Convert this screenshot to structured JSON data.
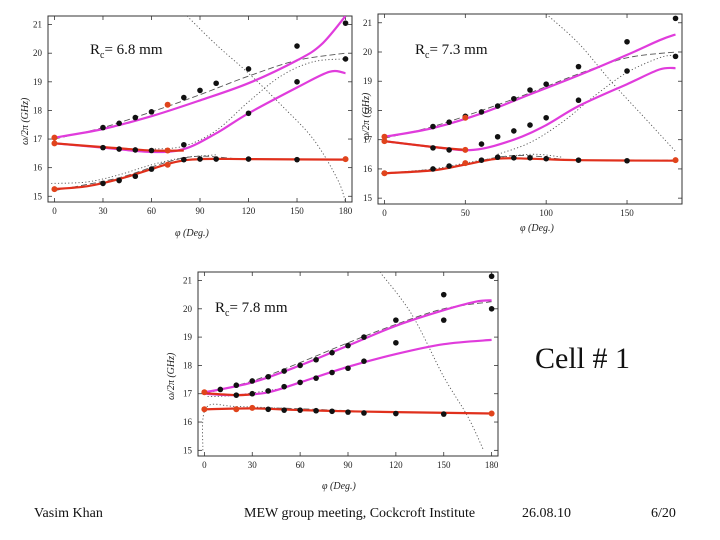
{
  "cell_label": "Cell # 1",
  "footer": {
    "author": "Vasim Khan",
    "meeting": "MEW group meeting, Cockcroft Institute",
    "date": "26.08.10",
    "page": "6/20"
  },
  "colors": {
    "magenta": "#e03cdc",
    "red": "#e0301c",
    "dashed": "#555555",
    "dotted": "#555555",
    "dot": "#111111",
    "dot_red": "#e0441c"
  },
  "chart_data": [
    {
      "id": "p1",
      "type": "scatter",
      "label_prefix": "R",
      "label_sub": "c",
      "label_value": "= 6.8 mm",
      "ylabel": "ω/2π (GHz)",
      "xlabel": "φ (Deg.)",
      "xlim": [
        -4,
        184
      ],
      "ylim": [
        14.8,
        21.3
      ],
      "xticks": [
        0,
        30,
        60,
        90,
        120,
        150,
        180
      ],
      "yticks": [
        15,
        16,
        17,
        18,
        19,
        20,
        21
      ],
      "magenta_upper": [
        [
          0,
          17.05
        ],
        [
          30,
          17.35
        ],
        [
          60,
          17.8
        ],
        [
          90,
          18.35
        ],
        [
          120,
          18.95
        ],
        [
          150,
          19.75
        ],
        [
          165,
          20.3
        ],
        [
          180,
          21.3
        ]
      ],
      "magenta_middle": [
        [
          0,
          16.85
        ],
        [
          30,
          16.7
        ],
        [
          60,
          16.55
        ],
        [
          80,
          16.65
        ],
        [
          100,
          17.2
        ],
        [
          120,
          17.9
        ],
        [
          150,
          18.8
        ],
        [
          170,
          19.35
        ],
        [
          180,
          19.3
        ]
      ],
      "red_lower": [
        [
          0,
          15.25
        ],
        [
          20,
          15.35
        ],
        [
          40,
          15.6
        ],
        [
          60,
          15.95
        ],
        [
          75,
          16.2
        ],
        [
          90,
          16.3
        ],
        [
          120,
          16.3
        ],
        [
          180,
          16.28
        ]
      ],
      "red_mid_overlay": [
        [
          0,
          16.85
        ],
        [
          30,
          16.72
        ],
        [
          60,
          16.6
        ],
        [
          80,
          16.6
        ]
      ],
      "dashed_upper": [
        [
          0,
          17.0
        ],
        [
          30,
          17.4
        ],
        [
          60,
          17.95
        ],
        [
          90,
          18.55
        ],
        [
          120,
          19.2
        ],
        [
          150,
          19.75
        ],
        [
          180,
          20.0
        ]
      ],
      "dashed_lower": [
        [
          0,
          15.2
        ],
        [
          40,
          15.65
        ],
        [
          70,
          16.2
        ],
        [
          90,
          16.4
        ],
        [
          120,
          16.3
        ],
        [
          180,
          16.3
        ]
      ],
      "dotted_upper": [
        [
          60,
          16.65
        ],
        [
          80,
          16.75
        ],
        [
          100,
          17.3
        ],
        [
          120,
          18.3
        ],
        [
          140,
          19.2
        ],
        [
          160,
          19.7
        ],
        [
          180,
          19.8
        ]
      ],
      "dotted_lower": [
        [
          -2,
          15.45
        ],
        [
          20,
          15.5
        ],
        [
          40,
          15.75
        ],
        [
          60,
          16.1
        ],
        [
          80,
          16.35
        ],
        [
          100,
          16.45
        ]
      ],
      "dotted_diag": [
        [
          82,
          21.3
        ],
        [
          100,
          20.3
        ],
        [
          120,
          19.3
        ],
        [
          140,
          18.2
        ],
        [
          160,
          17.0
        ],
        [
          175,
          15.6
        ],
        [
          180,
          14.8
        ]
      ],
      "dots_black": [
        [
          30,
          17.4
        ],
        [
          40,
          17.55
        ],
        [
          50,
          17.75
        ],
        [
          60,
          17.95
        ],
        [
          80,
          18.45
        ],
        [
          90,
          18.7
        ],
        [
          100,
          18.95
        ],
        [
          120,
          19.45
        ],
        [
          150,
          20.25
        ],
        [
          180,
          21.05
        ],
        [
          180,
          19.8
        ],
        [
          150,
          19.0
        ],
        [
          120,
          17.9
        ],
        [
          30,
          16.7
        ],
        [
          40,
          16.65
        ],
        [
          50,
          16.62
        ],
        [
          60,
          16.6
        ],
        [
          80,
          16.8
        ],
        [
          90,
          16.3
        ],
        [
          100,
          16.3
        ],
        [
          120,
          16.3
        ],
        [
          150,
          16.28
        ],
        [
          30,
          15.45
        ],
        [
          40,
          15.55
        ],
        [
          50,
          15.7
        ],
        [
          60,
          15.95
        ],
        [
          80,
          16.28
        ]
      ],
      "dots_red": [
        [
          0,
          17.05
        ],
        [
          0,
          16.85
        ],
        [
          0,
          15.25
        ],
        [
          70,
          18.2
        ],
        [
          70,
          16.6
        ],
        [
          70,
          16.1
        ],
        [
          180,
          16.3
        ]
      ]
    },
    {
      "id": "p2",
      "type": "scatter",
      "label_prefix": "R",
      "label_sub": "c",
      "label_value": "= 7.3 mm",
      "ylabel": "ω/2π (GHz)",
      "xlabel": "φ (Deg.)",
      "xlim": [
        -4,
        184
      ],
      "ylim": [
        14.8,
        21.3
      ],
      "xticks": [
        0,
        50,
        100,
        150
      ],
      "yticks": [
        15,
        16,
        17,
        18,
        19,
        20,
        21
      ],
      "magenta_upper": [
        [
          0,
          17.1
        ],
        [
          30,
          17.4
        ],
        [
          60,
          17.9
        ],
        [
          90,
          18.55
        ],
        [
          120,
          19.2
        ],
        [
          150,
          19.9
        ],
        [
          170,
          20.4
        ],
        [
          180,
          20.6
        ]
      ],
      "magenta_middle": [
        [
          0,
          16.95
        ],
        [
          30,
          16.75
        ],
        [
          55,
          16.65
        ],
        [
          80,
          17.0
        ],
        [
          100,
          17.5
        ],
        [
          120,
          18.15
        ],
        [
          150,
          18.9
        ],
        [
          170,
          19.4
        ],
        [
          180,
          19.45
        ]
      ],
      "red_lower": [
        [
          0,
          15.85
        ],
        [
          30,
          15.95
        ],
        [
          50,
          16.15
        ],
        [
          70,
          16.35
        ],
        [
          90,
          16.35
        ],
        [
          120,
          16.3
        ],
        [
          180,
          16.28
        ]
      ],
      "red_mid_overlay": [
        [
          0,
          16.95
        ],
        [
          30,
          16.75
        ],
        [
          50,
          16.65
        ]
      ],
      "dashed_upper": [
        [
          0,
          17.05
        ],
        [
          30,
          17.45
        ],
        [
          60,
          18.0
        ],
        [
          90,
          18.6
        ],
        [
          120,
          19.25
        ],
        [
          150,
          19.8
        ],
        [
          180,
          20.0
        ]
      ],
      "dashed_lower": [
        [
          0,
          15.85
        ],
        [
          40,
          16.05
        ],
        [
          70,
          16.4
        ],
        [
          90,
          16.45
        ],
        [
          120,
          16.3
        ],
        [
          180,
          16.3
        ]
      ],
      "dotted_upper": [
        [
          70,
          16.5
        ],
        [
          90,
          16.9
        ],
        [
          110,
          17.6
        ],
        [
          130,
          18.5
        ],
        [
          150,
          19.3
        ],
        [
          170,
          19.8
        ],
        [
          180,
          19.9
        ]
      ],
      "dotted_lower": [
        [
          -2,
          15.85
        ],
        [
          30,
          16.0
        ],
        [
          60,
          16.3
        ],
        [
          90,
          16.5
        ],
        [
          110,
          16.4
        ]
      ],
      "dotted_diag": [
        [
          100,
          21.3
        ],
        [
          120,
          20.3
        ],
        [
          140,
          19.0
        ],
        [
          160,
          17.8
        ],
        [
          180,
          16.6
        ]
      ],
      "dots_black": [
        [
          30,
          17.45
        ],
        [
          40,
          17.6
        ],
        [
          50,
          17.8
        ],
        [
          60,
          17.95
        ],
        [
          70,
          18.15
        ],
        [
          80,
          18.4
        ],
        [
          90,
          18.7
        ],
        [
          100,
          18.9
        ],
        [
          120,
          19.5
        ],
        [
          150,
          20.35
        ],
        [
          180,
          21.15
        ],
        [
          180,
          19.85
        ],
        [
          150,
          19.35
        ],
        [
          120,
          18.35
        ],
        [
          100,
          17.75
        ],
        [
          90,
          17.5
        ],
        [
          80,
          17.3
        ],
        [
          70,
          17.1
        ],
        [
          60,
          16.85
        ],
        [
          40,
          16.65
        ],
        [
          30,
          16.72
        ],
        [
          70,
          16.4
        ],
        [
          80,
          16.38
        ],
        [
          90,
          16.38
        ],
        [
          100,
          16.35
        ],
        [
          120,
          16.3
        ],
        [
          150,
          16.28
        ],
        [
          30,
          16.0
        ],
        [
          40,
          16.1
        ],
        [
          60,
          16.3
        ]
      ],
      "dots_red": [
        [
          0,
          17.1
        ],
        [
          0,
          16.95
        ],
        [
          0,
          15.85
        ],
        [
          50,
          17.75
        ],
        [
          50,
          16.65
        ],
        [
          50,
          16.2
        ],
        [
          180,
          16.3
        ]
      ]
    },
    {
      "id": "p3",
      "type": "scatter",
      "label_prefix": "R",
      "label_sub": "c",
      "label_value": "= 7.8 mm",
      "ylabel": "ω/2π (GHz)",
      "xlabel": "φ (Deg.)",
      "xlim": [
        -4,
        184
      ],
      "ylim": [
        14.8,
        21.3
      ],
      "xticks": [
        0,
        30,
        60,
        90,
        120,
        150,
        180
      ],
      "yticks": [
        15,
        16,
        17,
        18,
        19,
        20,
        21
      ],
      "magenta_upper": [
        [
          0,
          17.05
        ],
        [
          30,
          17.4
        ],
        [
          60,
          18.0
        ],
        [
          90,
          18.7
        ],
        [
          120,
          19.4
        ],
        [
          150,
          19.95
        ],
        [
          170,
          20.25
        ],
        [
          180,
          20.3
        ]
      ],
      "magenta_middle": [
        [
          0,
          17.0
        ],
        [
          20,
          16.95
        ],
        [
          40,
          17.05
        ],
        [
          60,
          17.4
        ],
        [
          90,
          17.95
        ],
        [
          120,
          18.4
        ],
        [
          150,
          18.75
        ],
        [
          180,
          18.9
        ]
      ],
      "red_lower": [
        [
          0,
          16.45
        ],
        [
          30,
          16.48
        ],
        [
          60,
          16.42
        ],
        [
          90,
          16.38
        ],
        [
          120,
          16.35
        ],
        [
          180,
          16.3
        ]
      ],
      "red_mid_overlay": [
        [
          0,
          17.02
        ],
        [
          20,
          16.95
        ],
        [
          30,
          16.98
        ]
      ],
      "dashed_upper": [
        [
          0,
          17.0
        ],
        [
          30,
          17.45
        ],
        [
          60,
          18.1
        ],
        [
          90,
          18.8
        ],
        [
          120,
          19.45
        ],
        [
          150,
          20.0
        ],
        [
          180,
          20.25
        ]
      ],
      "dashed_lower": [
        [
          0,
          16.45
        ],
        [
          40,
          16.5
        ],
        [
          90,
          16.4
        ],
        [
          120,
          16.35
        ],
        [
          180,
          16.3
        ]
      ],
      "dotted_upper": [
        [
          2,
          16.9
        ],
        [
          20,
          16.95
        ],
        [
          50,
          17.2
        ]
      ],
      "dotted_lower": [
        [
          -1,
          15.0
        ],
        [
          1,
          16.5
        ],
        [
          20,
          16.55
        ],
        [
          60,
          16.45
        ]
      ],
      "dotted_diag": [
        [
          110,
          21.3
        ],
        [
          130,
          19.8
        ],
        [
          150,
          17.6
        ],
        [
          165,
          16.2
        ],
        [
          175,
          15.0
        ]
      ],
      "dots_black": [
        [
          10,
          17.15
        ],
        [
          20,
          17.3
        ],
        [
          30,
          17.45
        ],
        [
          40,
          17.6
        ],
        [
          50,
          17.8
        ],
        [
          60,
          18.0
        ],
        [
          70,
          18.2
        ],
        [
          80,
          18.45
        ],
        [
          90,
          18.7
        ],
        [
          100,
          19.0
        ],
        [
          120,
          19.6
        ],
        [
          150,
          20.5
        ],
        [
          180,
          21.15
        ],
        [
          180,
          20.0
        ],
        [
          150,
          19.6
        ],
        [
          120,
          18.8
        ],
        [
          100,
          18.15
        ],
        [
          90,
          17.9
        ],
        [
          80,
          17.75
        ],
        [
          70,
          17.55
        ],
        [
          60,
          17.4
        ],
        [
          50,
          17.25
        ],
        [
          40,
          17.1
        ],
        [
          30,
          17.0
        ],
        [
          20,
          16.95
        ],
        [
          40,
          16.45
        ],
        [
          50,
          16.42
        ],
        [
          60,
          16.42
        ],
        [
          70,
          16.4
        ],
        [
          80,
          16.38
        ],
        [
          90,
          16.35
        ],
        [
          100,
          16.32
        ],
        [
          120,
          16.3
        ],
        [
          150,
          16.28
        ]
      ],
      "dots_red": [
        [
          0,
          17.05
        ],
        [
          0,
          16.45
        ],
        [
          20,
          16.45
        ],
        [
          30,
          16.5
        ],
        [
          180,
          16.3
        ]
      ]
    }
  ]
}
